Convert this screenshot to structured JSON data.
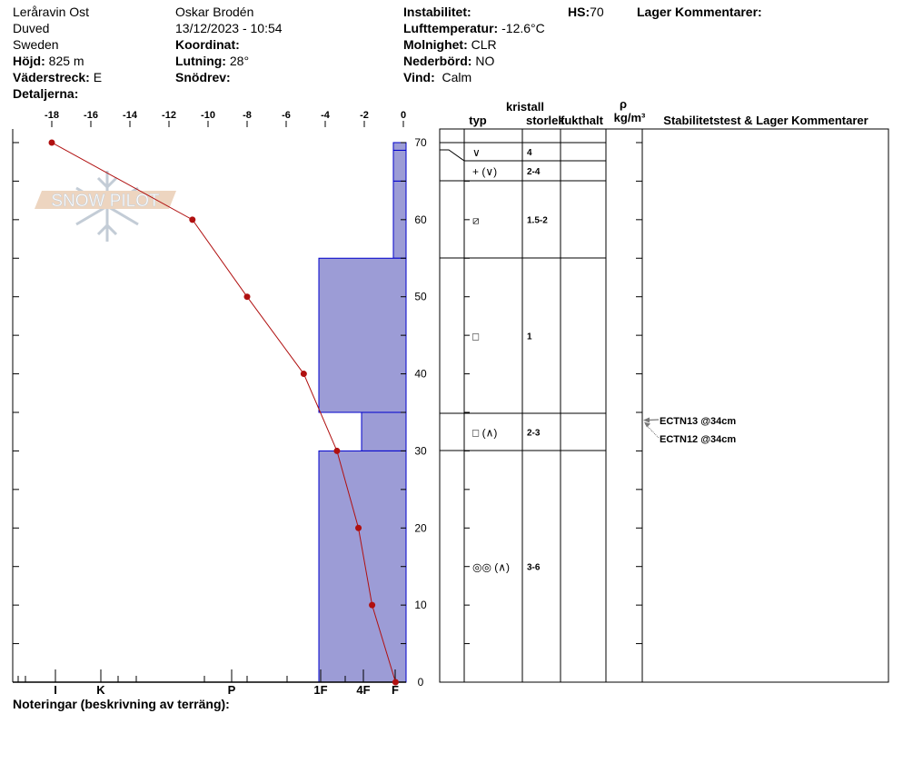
{
  "header": {
    "location": "Leråravin Ost",
    "area": "Duved",
    "country": "Sweden",
    "elevation_label": "Höjd:",
    "elevation": "825 m",
    "aspect_label": "Väderstreck:",
    "aspect": "E",
    "details_label": "Detaljerna:",
    "observer": "Oskar Brodén",
    "datetime": "13/12/2023 - 10:54",
    "coord_label": "Koordinat:",
    "slope_label": "Lutning:",
    "slope": "28°",
    "drift_label": "Snödrev:",
    "instability_label": "Instabilitet:",
    "airtemp_label": "Lufttemperatur:",
    "airtemp": "-12.6°C",
    "cloud_label": "Molnighet:",
    "cloud": "CLR",
    "precip_label": "Nederbörd:",
    "precip": "NO",
    "wind_label": "Vind:",
    "wind": "Calm",
    "hs_label": "HS:",
    "hs": "70",
    "layer_comments_label": "Lager Kommentarer:"
  },
  "footer": {
    "notes_label": "Noteringar (beskrivning av terräng):"
  },
  "logo": {
    "text": "SNOW PILOT"
  },
  "table": {
    "crystal_label": "kristall",
    "type_label": "typ",
    "size_label": "storlek",
    "moisture_label": "fukthalt",
    "density_symbol": "ρ",
    "density_unit": "kg/m³",
    "comments_label": "Stabilitetstest & Lager Kommentarer"
  },
  "chart_data": {
    "type": "line",
    "temperature_axis": {
      "ticks": [
        -18,
        -16,
        -14,
        -12,
        -10,
        -8,
        -6,
        -4,
        -2,
        0
      ],
      "range": [
        -18,
        0
      ]
    },
    "depth_axis": {
      "ticks": [
        0,
        10,
        20,
        30,
        40,
        50,
        60,
        70
      ],
      "range": [
        0,
        70
      ]
    },
    "hardness_axis": {
      "ticks": [
        "I",
        "K",
        "P",
        "1F",
        "4F",
        "F"
      ]
    },
    "temperature_profile": [
      {
        "depth": 70,
        "temp": -18
      },
      {
        "depth": 60,
        "temp": -10.8
      },
      {
        "depth": 50,
        "temp": -8
      },
      {
        "depth": 40,
        "temp": -5.1
      },
      {
        "depth": 30,
        "temp": -3.4
      },
      {
        "depth": 20,
        "temp": -2.3
      },
      {
        "depth": 10,
        "temp": -1.6
      },
      {
        "depth": 0,
        "temp": -0.4
      }
    ],
    "layers": [
      {
        "top": 70,
        "bottom": 69,
        "hardness": "F",
        "type": "∨",
        "size": "4"
      },
      {
        "top": 69,
        "bottom": 65,
        "hardness": "F",
        "type": "+ (∨)",
        "size": "2-4"
      },
      {
        "top": 65,
        "bottom": 55,
        "hardness": "F",
        "type": "⧄",
        "size": "1.5-2"
      },
      {
        "top": 55,
        "bottom": 35,
        "hardness": "1F",
        "type": "□",
        "size": "1"
      },
      {
        "top": 35,
        "bottom": 30,
        "hardness": "4F",
        "type": "□ (∧)",
        "size": "2-3"
      },
      {
        "top": 30,
        "bottom": 0,
        "hardness": "1F",
        "type": "◎◎ (∧)",
        "size": "3-6"
      }
    ],
    "stability_tests": [
      {
        "label": "ECTN13 @34cm",
        "depth": 34
      },
      {
        "label": "ECTN12 @34cm",
        "depth": 34
      }
    ],
    "colors": {
      "hardness_fill": "#9c9cd6",
      "hardness_stroke": "#0000cc",
      "temp_line": "#b01010"
    }
  }
}
